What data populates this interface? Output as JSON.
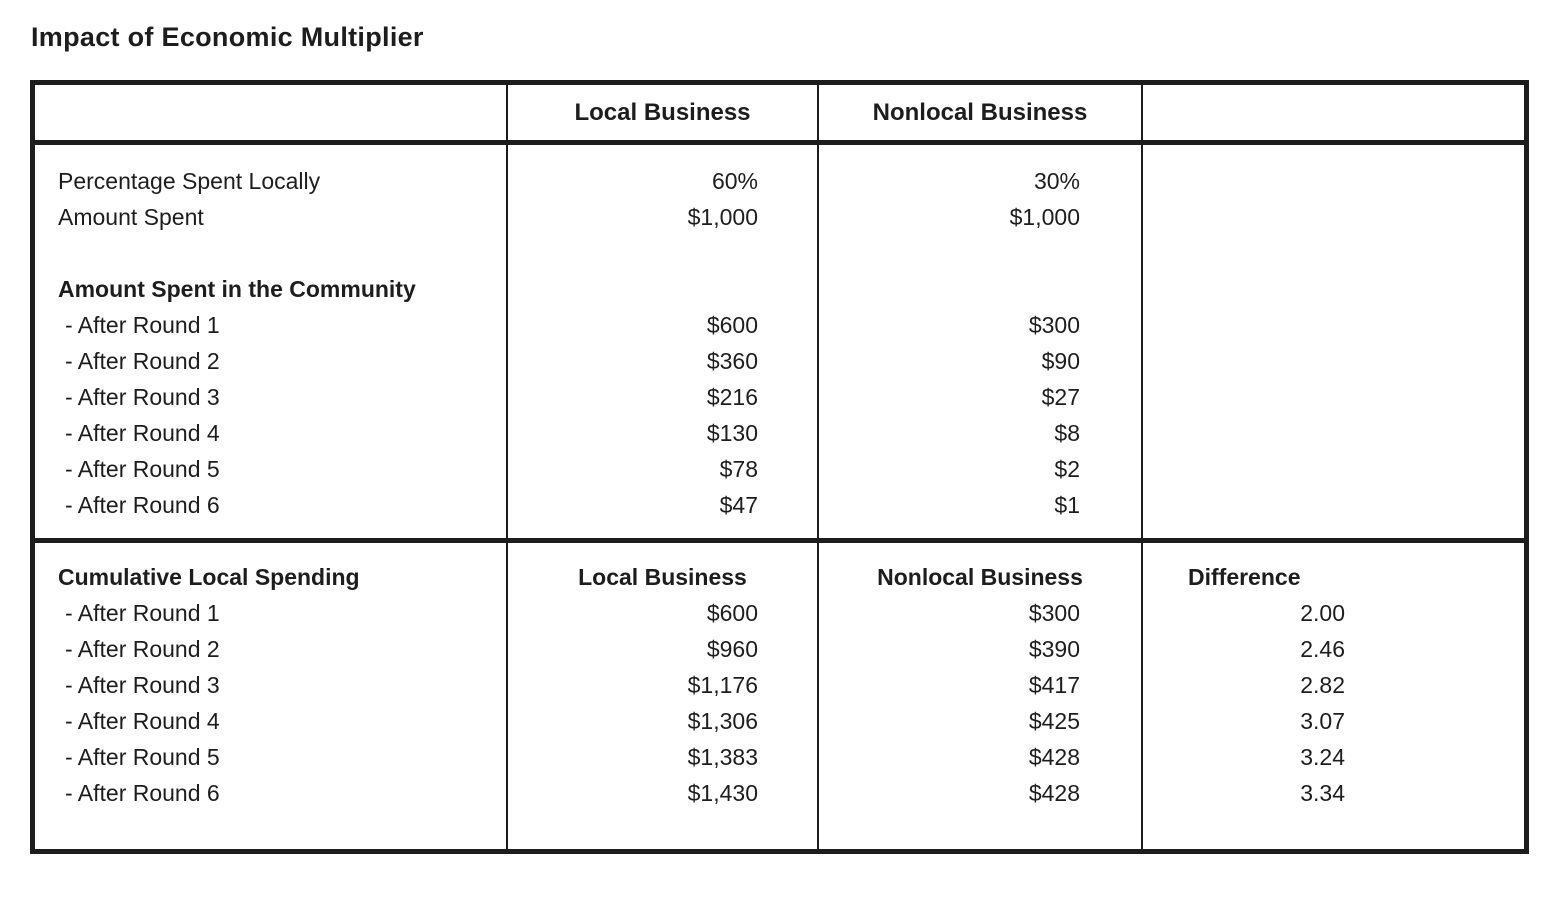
{
  "title": "Impact of Economic Multiplier",
  "table": {
    "header": {
      "local": "Local Business",
      "nonlocal": "Nonlocal Business"
    },
    "section1": {
      "intro_rows": [
        {
          "label": "Percentage Spent Locally",
          "local": "60%",
          "nonlocal": "30%"
        },
        {
          "label": "Amount Spent",
          "local": "$1,000",
          "nonlocal": "$1,000"
        }
      ],
      "group_title": "Amount Spent in the Community",
      "rounds": [
        {
          "label": "- After Round 1",
          "local": "$600",
          "nonlocal": "$300"
        },
        {
          "label": "- After Round 2",
          "local": "$360",
          "nonlocal": "$90"
        },
        {
          "label": "- After Round 3",
          "local": "$216",
          "nonlocal": "$27"
        },
        {
          "label": "- After Round 4",
          "local": "$130",
          "nonlocal": "$8"
        },
        {
          "label": "- After Round 5",
          "local": "$78",
          "nonlocal": "$2"
        },
        {
          "label": "- After Round 6",
          "local": "$47",
          "nonlocal": "$1"
        }
      ]
    },
    "section2": {
      "group_title": "Cumulative Local Spending",
      "col_headers": {
        "local": "Local Business",
        "nonlocal": "Nonlocal Business",
        "difference": "Difference"
      },
      "rounds": [
        {
          "label": "- After Round 1",
          "local": "$600",
          "nonlocal": "$300",
          "difference": "2.00"
        },
        {
          "label": "- After Round 2",
          "local": "$960",
          "nonlocal": "$390",
          "difference": "2.46"
        },
        {
          "label": "- After Round 3",
          "local": "$1,176",
          "nonlocal": "$417",
          "difference": "2.82"
        },
        {
          "label": "- After Round 4",
          "local": "$1,306",
          "nonlocal": "$425",
          "difference": "3.07"
        },
        {
          "label": "- After Round 5",
          "local": "$1,383",
          "nonlocal": "$428",
          "difference": "3.24"
        },
        {
          "label": "- After Round 6",
          "local": "$1,430",
          "nonlocal": "$428",
          "difference": "3.34"
        }
      ]
    },
    "border_color": "#1d1d1d",
    "background_color": "#ffffff"
  }
}
